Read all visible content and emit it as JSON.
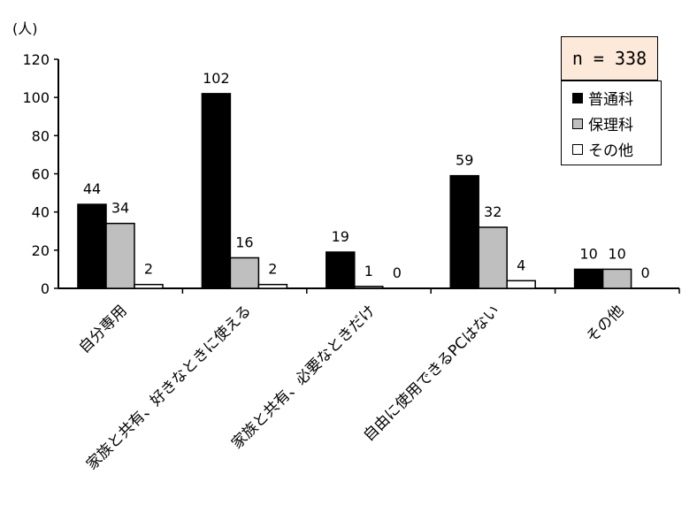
{
  "chart_data": {
    "type": "bar",
    "ylabel": "(人)",
    "ylim": [
      0,
      120
    ],
    "yticks": [
      0,
      20,
      40,
      60,
      80,
      100,
      120
    ],
    "categories": [
      "自分専用",
      "家族と共有、好きなときに使える",
      "家族と共有、必要なときだけ",
      "自由に使用できるPCはない",
      "その他"
    ],
    "series": [
      {
        "name": "普通科",
        "color": "#000000",
        "values": [
          44,
          102,
          19,
          59,
          10
        ]
      },
      {
        "name": "保理科",
        "color": "#bfbfbf",
        "values": [
          34,
          16,
          1,
          32,
          10
        ]
      },
      {
        "name": "その他",
        "color": "#ffffff",
        "values": [
          2,
          2,
          0,
          4,
          0
        ]
      }
    ],
    "annotation": "n = 338",
    "legend_position": "top-right",
    "grid": false
  }
}
